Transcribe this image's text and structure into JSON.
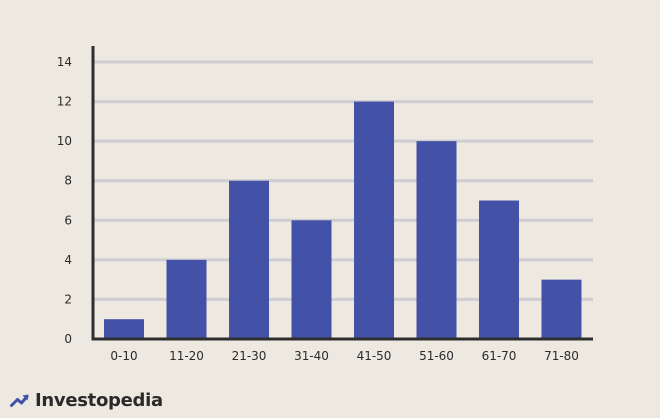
{
  "theme": {
    "background": "#ede9e1",
    "grid_line": "#cfcdd1",
    "axis": "#2e2e2e",
    "bar": "#4351a6",
    "text": "#2b2b2b",
    "logo_mark": "#4351a6",
    "logo_text": "#2a2a2a"
  },
  "brand": {
    "name": "Investopedia",
    "logo_icon": "investopedia-arrow-mark"
  },
  "chart_data": {
    "type": "bar",
    "title": "",
    "xlabel": "",
    "ylabel": "",
    "categories": [
      "0-10",
      "11-20",
      "21-30",
      "31-40",
      "41-50",
      "51-60",
      "61-70",
      "71-80"
    ],
    "values": [
      1,
      4,
      8,
      6,
      12,
      10,
      7,
      3
    ],
    "ylim": [
      0,
      14
    ],
    "yticks": [
      "0",
      "2",
      "4",
      "6",
      "8",
      "10",
      "12",
      "14"
    ],
    "grid": true,
    "legend": "none"
  }
}
